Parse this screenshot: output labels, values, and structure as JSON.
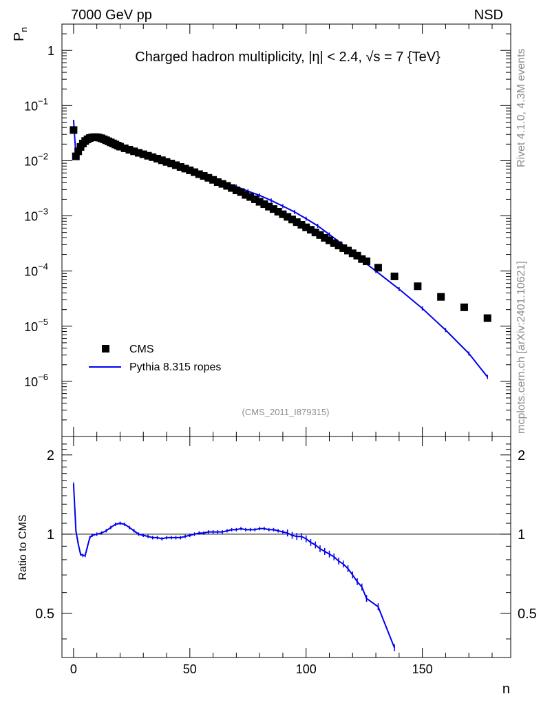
{
  "header": {
    "left": "7000 GeV pp",
    "right": "NSD"
  },
  "side_labels": {
    "rivet": "Rivet 4.1.0,  4.3M events",
    "site": "mcplots.cern.ch [arXiv:2401.10621]"
  },
  "chart_data": [
    {
      "type": "scatter",
      "panel": "main",
      "title": "Charged hadron multiplicity, |η| < 2.4, √s = 7 {TeV}",
      "ylabel": "P_n",
      "xlabel": "n",
      "xlim": [
        -5,
        188
      ],
      "ylim": [
        1e-07,
        3
      ],
      "yscale": "log",
      "y_tick_labels": [
        "1",
        "10^-1",
        "10^-2",
        "10^-3",
        "10^-4",
        "10^-5",
        "10^-6"
      ],
      "x_tick_labels": [
        "0",
        "50",
        "100",
        "150"
      ],
      "analysis_label": "(CMS_2011_I879315)",
      "legend": [
        "CMS",
        "Pythia 8.315 ropes"
      ],
      "series": [
        {
          "name": "CMS",
          "style": "markers",
          "x": [
            0,
            1,
            2,
            3,
            4,
            5,
            6,
            7,
            8,
            9,
            10,
            11,
            12,
            13,
            14,
            15,
            16,
            17,
            18,
            19,
            20,
            22,
            24,
            26,
            28,
            30,
            32,
            34,
            36,
            38,
            40,
            42,
            44,
            46,
            48,
            50,
            52,
            54,
            56,
            58,
            60,
            62,
            64,
            66,
            68,
            70,
            72,
            74,
            76,
            78,
            80,
            82,
            84,
            86,
            88,
            90,
            92,
            94,
            96,
            98,
            100,
            102,
            104,
            106,
            108,
            110,
            112,
            114,
            116,
            118,
            120,
            122,
            124,
            126,
            131,
            138,
            148,
            158,
            168,
            178
          ],
          "values": [
            0.036,
            0.012,
            0.0148,
            0.0178,
            0.0205,
            0.0228,
            0.0245,
            0.0258,
            0.0265,
            0.0268,
            0.0267,
            0.0262,
            0.0255,
            0.0245,
            0.0235,
            0.0225,
            0.0215,
            0.0206,
            0.0197,
            0.0188,
            0.018,
            0.0168,
            0.0158,
            0.0148,
            0.0139,
            0.0131,
            0.0123,
            0.0116,
            0.0109,
            0.0102,
            0.0095,
            0.0089,
            0.0083,
            0.0077,
            0.0072,
            0.0067,
            0.0062,
            0.0057,
            0.0053,
            0.0049,
            0.0045,
            0.0041,
            0.0038,
            0.0035,
            0.0032,
            0.0029,
            0.0027,
            0.0024,
            0.0022,
            0.002,
            0.0018,
            0.00163,
            0.00147,
            0.00133,
            0.00119,
            0.00107,
            0.00096,
            0.00086,
            0.00077,
            0.00069,
            0.00062,
            0.00056,
            0.0005,
            0.00045,
            0.0004,
            0.00036,
            0.00032,
            0.00029,
            0.00026,
            0.000235,
            0.00021,
            0.00019,
            0.000165,
            0.00015,
            0.000115,
            8e-05,
            5.3e-05,
            3.4e-05,
            2.2e-05,
            1.4e-05
          ],
          "color": "#000000"
        },
        {
          "name": "Pythia 8.315 ropes",
          "style": "line",
          "x": [
            0,
            1,
            2,
            3,
            4,
            5,
            6,
            7,
            8,
            9,
            10,
            12,
            14,
            16,
            18,
            20,
            22,
            24,
            26,
            28,
            30,
            35,
            40,
            45,
            50,
            55,
            60,
            65,
            70,
            75,
            80,
            85,
            90,
            95,
            100,
            105,
            110,
            115,
            120,
            125,
            130,
            140,
            150,
            160,
            170,
            178
          ],
          "values": [
            0.055,
            0.0123,
            0.0123,
            0.0148,
            0.0173,
            0.019,
            0.0203,
            0.0215,
            0.0228,
            0.0238,
            0.0246,
            0.0253,
            0.0252,
            0.0244,
            0.0229,
            0.0205,
            0.0181,
            0.016,
            0.0148,
            0.0138,
            0.0129,
            0.0109,
            0.0092,
            0.0077,
            0.0066,
            0.0056,
            0.0047,
            0.004,
            0.0034,
            0.0028,
            0.00235,
            0.0019,
            0.0015,
            0.00118,
            0.00089,
            0.00066,
            0.00046,
            0.00032,
            0.00021,
            0.000145,
            0.0001,
            4.7e-05,
            2.1e-05,
            8.5e-06,
            3.2e-06,
            1.2e-06
          ],
          "color": "#0000ee"
        }
      ]
    },
    {
      "type": "line",
      "panel": "ratio",
      "ylabel": "Ratio to CMS",
      "xlabel": "n",
      "xlim": [
        -5,
        188
      ],
      "ylim": [
        0.34,
        2.35
      ],
      "reference_line": 1,
      "y_tick_labels": [
        "0.5",
        "1",
        "2"
      ],
      "x_tick_labels": [
        "0",
        "50",
        "100",
        "150"
      ],
      "series": [
        {
          "name": "Pythia 8.315 ropes / CMS",
          "x": [
            0,
            1,
            2,
            3,
            4,
            5,
            6,
            7,
            8,
            10,
            12,
            14,
            16,
            18,
            20,
            22,
            24,
            26,
            28,
            30,
            32,
            34,
            36,
            38,
            40,
            42,
            44,
            46,
            48,
            50,
            52,
            54,
            56,
            58,
            60,
            62,
            64,
            66,
            68,
            70,
            72,
            74,
            76,
            78,
            80,
            82,
            84,
            86,
            88,
            90,
            92,
            94,
            96,
            98,
            100,
            102,
            104,
            106,
            108,
            110,
            112,
            114,
            116,
            118,
            120,
            122,
            124,
            126,
            131,
            138
          ],
          "values": [
            1.55,
            1.03,
            0.92,
            0.84,
            0.83,
            0.83,
            0.9,
            0.97,
            0.99,
            1.0,
            1.01,
            1.03,
            1.06,
            1.09,
            1.1,
            1.09,
            1.06,
            1.03,
            1.0,
            0.99,
            0.98,
            0.97,
            0.97,
            0.96,
            0.97,
            0.97,
            0.97,
            0.97,
            0.98,
            0.99,
            1.0,
            1.01,
            1.01,
            1.02,
            1.02,
            1.02,
            1.02,
            1.03,
            1.04,
            1.04,
            1.05,
            1.04,
            1.04,
            1.04,
            1.05,
            1.05,
            1.04,
            1.04,
            1.03,
            1.02,
            1.01,
            0.99,
            0.98,
            0.98,
            0.96,
            0.93,
            0.91,
            0.88,
            0.86,
            0.84,
            0.82,
            0.79,
            0.77,
            0.74,
            0.7,
            0.66,
            0.63,
            0.57,
            0.53,
            0.37
          ],
          "color": "#0000ee"
        }
      ]
    }
  ]
}
